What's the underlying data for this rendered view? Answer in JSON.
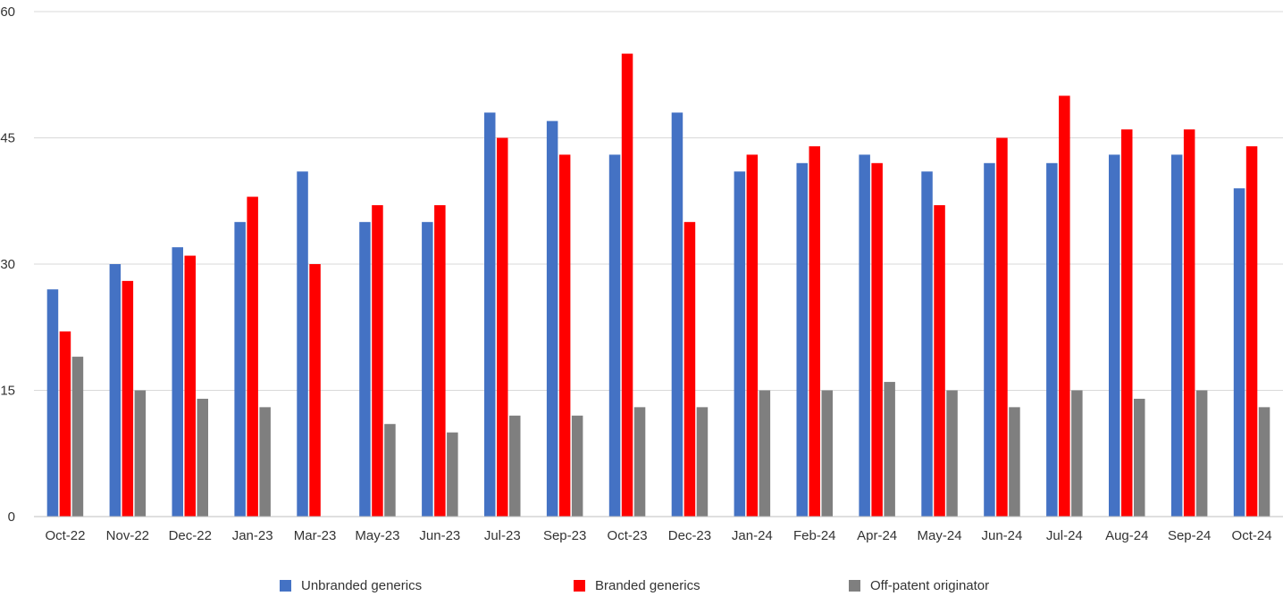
{
  "chart_data": {
    "type": "bar",
    "categories": [
      "Oct-22",
      "Nov-22",
      "Dec-22",
      "Jan-23",
      "Mar-23",
      "May-23",
      "Jun-23",
      "Jul-23",
      "Sep-23",
      "Oct-23",
      "Dec-23",
      "Jan-24",
      "Feb-24",
      "Apr-24",
      "May-24",
      "Jun-24",
      "Jul-24",
      "Aug-24",
      "Sep-24",
      "Oct-24"
    ],
    "series": [
      {
        "name": "Unbranded generics",
        "color": "#4472C4",
        "values": [
          27,
          30,
          32,
          35,
          41,
          35,
          35,
          48,
          47,
          43,
          48,
          41,
          42,
          43,
          41,
          42,
          42,
          43,
          43,
          39
        ]
      },
      {
        "name": "Branded generics",
        "color": "#FF0000",
        "values": [
          22,
          28,
          31,
          38,
          30,
          37,
          37,
          45,
          43,
          55,
          35,
          43,
          44,
          42,
          37,
          45,
          50,
          46,
          46,
          44
        ]
      },
      {
        "name": "Off-patent originator",
        "color": "#7F7F7F",
        "values": [
          19,
          15,
          14,
          13,
          null,
          11,
          10,
          12,
          12,
          13,
          13,
          15,
          15,
          16,
          15,
          13,
          15,
          14,
          15,
          13
        ]
      }
    ],
    "yticks": [
      "0",
      "15",
      "30",
      "45",
      "60"
    ],
    "ylim": [
      0,
      60
    ],
    "grid": true,
    "legend_position": "bottom"
  }
}
